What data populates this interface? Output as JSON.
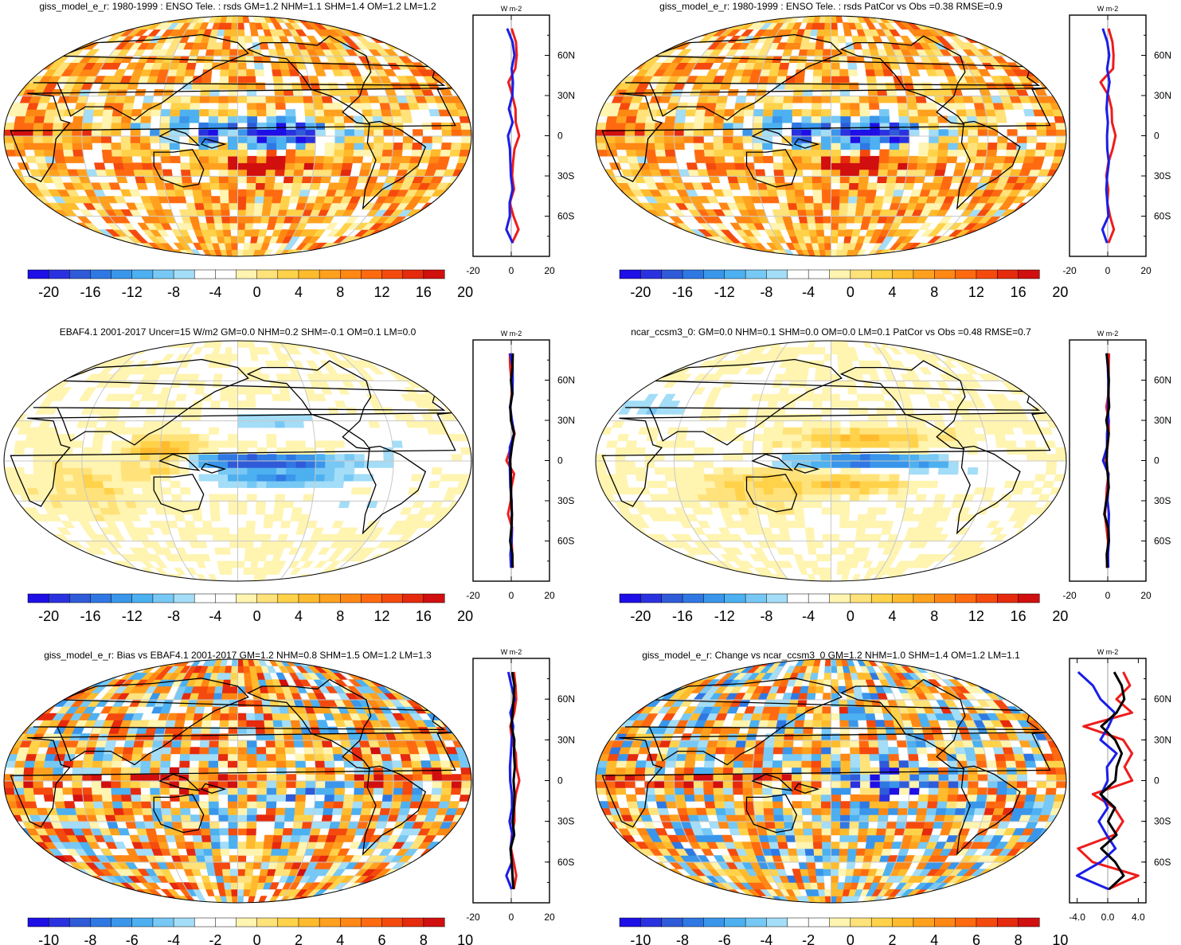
{
  "colors": {
    "palette": [
      "#1e0fe6",
      "#2a32e0",
      "#2f5ad8",
      "#2f78e4",
      "#3a96ea",
      "#4db0f0",
      "#77c8f4",
      "#a3ddf7",
      "#ffffff",
      "#ffffff",
      "#fff4b0",
      "#ffe27a",
      "#ffd24a",
      "#ffbb2d",
      "#ffa11e",
      "#ff8714",
      "#ff6a10",
      "#f54a0e",
      "#e52a0e",
      "#d10f0f"
    ],
    "model_line": "#ee1c1c",
    "obs_line": "#1a1ee6",
    "diff_line": "#000000",
    "grid": "#c8c8c8",
    "land_outline": "#000000"
  },
  "chart_data": [
    {
      "type": "heatmap",
      "title": "giss_model_e_r: 1980-1999 : ENSO Tele. : rsds GM=1.2 NHM=1.1 SHM=1.4 OM=1.2 LM=1.2",
      "field": "model",
      "colorbar": {
        "tick_labels": [
          "-20",
          "-16",
          "-12",
          "-8",
          "-4",
          "0",
          "4",
          "8",
          "12",
          "16",
          "20"
        ],
        "range": [
          -22,
          22
        ]
      },
      "zonal_profile": {
        "unit": "W m-2",
        "xticks": [
          "-20",
          "0",
          "20"
        ],
        "xlim": [
          -20,
          20
        ],
        "yticks": [
          "60N",
          "30N",
          "0",
          "30S",
          "60S"
        ],
        "lat": [
          80,
          70,
          60,
          50,
          40,
          30,
          20,
          10,
          0,
          -10,
          -20,
          -30,
          -40,
          -50,
          -60,
          -70,
          -80
        ],
        "series": [
          {
            "name": "model",
            "values": [
              1,
              2,
              3,
              2,
              -2,
              1,
              2,
              3,
              4,
              2,
              1,
              0,
              1,
              0,
              1,
              3,
              1
            ]
          },
          {
            "name": "obs",
            "values": [
              -2,
              0,
              1,
              0,
              1,
              0,
              -1,
              0,
              -1,
              0,
              0,
              -1,
              0,
              -1,
              0,
              -2,
              0
            ]
          }
        ]
      }
    },
    {
      "type": "heatmap",
      "title": "giss_model_e_r: 1980-1999 : ENSO Tele. : rsds PatCor vs Obs =0.38 RMSE=0.9",
      "field": "model",
      "colorbar": {
        "tick_labels": [
          "-20",
          "-16",
          "-12",
          "-8",
          "-4",
          "0",
          "4",
          "8",
          "12",
          "16",
          "20"
        ],
        "range": [
          -22,
          22
        ]
      },
      "zonal_profile": {
        "unit": "W m-2",
        "xticks": [
          "-20",
          "0",
          "20"
        ],
        "xlim": [
          -20,
          20
        ],
        "yticks": [
          "60N",
          "30N",
          "0",
          "30S",
          "60S"
        ],
        "lat": [
          80,
          70,
          60,
          50,
          40,
          30,
          20,
          10,
          0,
          -10,
          -20,
          -30,
          -40,
          -50,
          -60,
          -70,
          -80
        ],
        "series": [
          {
            "name": "model",
            "values": [
              1,
              2,
              3,
              2,
              -3,
              1,
              2,
              3,
              4,
              2,
              1,
              0,
              1,
              0,
              2,
              4,
              1
            ]
          },
          {
            "name": "obs",
            "values": [
              -2,
              -1,
              0,
              0,
              1,
              0,
              -1,
              0,
              -1,
              0,
              0,
              -1,
              0,
              -1,
              0,
              -3,
              0
            ]
          }
        ]
      }
    },
    {
      "type": "heatmap",
      "title": "EBAF4.1 2001-2017 Uncer=15 W/m2 GM=0.0 NHM=0.2 SHM=-0.1 OM=0.1 LM=0.0",
      "field": "obs",
      "colorbar": {
        "tick_labels": [
          "-20",
          "-16",
          "-12",
          "-8",
          "-4",
          "0",
          "4",
          "8",
          "12",
          "16",
          "20"
        ],
        "range": [
          -22,
          22
        ]
      },
      "zonal_profile": {
        "unit": "W m-2",
        "xticks": [
          "-20",
          "0",
          "20"
        ],
        "xlim": [
          -20,
          20
        ],
        "yticks": [
          "60N",
          "30N",
          "0",
          "30S",
          "60S"
        ],
        "lat": [
          80,
          70,
          60,
          50,
          40,
          30,
          20,
          10,
          0,
          -10,
          -20,
          -30,
          -40,
          -50,
          -60,
          -70,
          -80
        ],
        "series": [
          {
            "name": "model",
            "values": [
              0,
              0,
              0,
              0,
              0,
              1,
              1,
              0,
              -2,
              1,
              0,
              0,
              -1,
              0,
              0,
              0,
              0
            ]
          },
          {
            "name": "obs",
            "values": [
              0,
              0,
              0,
              0,
              0,
              0,
              1,
              0,
              -1,
              0,
              0,
              0,
              0,
              0,
              0,
              0,
              0
            ]
          },
          {
            "name": "diff",
            "values": [
              0,
              0,
              0,
              0,
              0,
              0,
              1,
              0,
              -1,
              0,
              0,
              0,
              0,
              0,
              0,
              0,
              0
            ]
          }
        ]
      }
    },
    {
      "type": "heatmap",
      "title": "ncar_ccsm3_0: GM=0.0 NHM=0.1 SHM=0.0 OM=0.0 LM=0.1 PatCor vs Obs =0.48 RMSE=0.7",
      "field": "obs2",
      "colorbar": {
        "tick_labels": [
          "-20",
          "-16",
          "-12",
          "-8",
          "-4",
          "0",
          "4",
          "8",
          "12",
          "16",
          "20"
        ],
        "range": [
          -22,
          22
        ]
      },
      "zonal_profile": {
        "unit": "W m-2",
        "xticks": [
          "-20",
          "0",
          "20"
        ],
        "xlim": [
          -20,
          20
        ],
        "yticks": [
          "60N",
          "30N",
          "0",
          "30S",
          "60S"
        ],
        "lat": [
          80,
          70,
          60,
          50,
          40,
          30,
          20,
          10,
          0,
          -10,
          -20,
          -30,
          -40,
          -50,
          -60,
          -70,
          -80
        ],
        "series": [
          {
            "name": "model",
            "values": [
              0,
              0,
              0,
              0,
              0,
              1,
              1,
              0,
              -2,
              1,
              0,
              0,
              -2,
              0,
              0,
              0,
              0
            ]
          },
          {
            "name": "obs",
            "values": [
              0,
              0,
              0,
              0,
              0,
              0,
              0,
              0,
              -2,
              0,
              0,
              0,
              0,
              0,
              0,
              0,
              0
            ]
          },
          {
            "name": "diff",
            "values": [
              0,
              0,
              0,
              0,
              0,
              0,
              0,
              0,
              -1,
              0,
              0,
              0,
              -1,
              0,
              0,
              0,
              0
            ]
          }
        ]
      }
    },
    {
      "type": "heatmap",
      "title": "giss_model_e_r: Bias vs EBAF4.1 2001-2017 GM=1.2 NHM=0.8 SHM=1.5 OM=1.2 LM=1.3",
      "field": "bias",
      "colorbar": {
        "tick_labels": [
          "-10",
          "-8",
          "-6",
          "-4",
          "-2",
          "0",
          "2",
          "4",
          "6",
          "8",
          "10"
        ],
        "range": [
          -11,
          11
        ]
      },
      "zonal_profile": {
        "unit": "W m-2",
        "xticks": [
          "-20",
          "0",
          "20"
        ],
        "xlim": [
          -20,
          20
        ],
        "yticks": [
          "60N",
          "30N",
          "0",
          "30S",
          "60S"
        ],
        "lat": [
          80,
          70,
          60,
          50,
          40,
          30,
          20,
          10,
          0,
          -10,
          -20,
          -30,
          -40,
          -50,
          -60,
          -70,
          -80
        ],
        "series": [
          {
            "name": "model",
            "values": [
              1,
              2,
              3,
              1,
              -1,
              1,
              2,
              3,
              4,
              2,
              1,
              1,
              1,
              0,
              2,
              3,
              1
            ]
          },
          {
            "name": "obs",
            "values": [
              -2,
              0,
              1,
              0,
              1,
              0,
              -1,
              0,
              -1,
              0,
              0,
              -1,
              0,
              -1,
              0,
              -2,
              0
            ]
          },
          {
            "name": "diff",
            "values": [
              1,
              1,
              2,
              1,
              0,
              1,
              1,
              2,
              2,
              1,
              1,
              0,
              1,
              0,
              1,
              1,
              1
            ]
          }
        ]
      }
    },
    {
      "type": "heatmap",
      "title": "giss_model_e_r: Change vs ncar_ccsm3_0 GM=1.2 NHM=1.0 SHM=1.4 OM=1.2 LM=1.1",
      "field": "change",
      "colorbar": {
        "tick_labels": [
          "-10",
          "-8",
          "-6",
          "-4",
          "-2",
          "0",
          "2",
          "4",
          "6",
          "8",
          "10"
        ],
        "range": [
          -11,
          11
        ]
      },
      "zonal_profile": {
        "unit": "W m-2",
        "xticks": [
          "-4.0",
          "0.0",
          "4.0"
        ],
        "xlim": [
          -5,
          5
        ],
        "yticks": [
          "60N",
          "30N",
          "0",
          "30S",
          "60S"
        ],
        "lat": [
          80,
          70,
          60,
          50,
          40,
          30,
          20,
          10,
          0,
          -10,
          -20,
          -30,
          -40,
          -50,
          -60,
          -70,
          -80
        ],
        "series": [
          {
            "name": "model",
            "values": [
              2,
              3,
              1,
              3,
              -3,
              2,
              3,
              2,
              3,
              -2,
              1,
              2,
              1,
              -4,
              -2,
              4,
              0
            ]
          },
          {
            "name": "obs",
            "values": [
              -4,
              -2,
              -1,
              1,
              0,
              -1,
              1,
              0,
              0,
              -1,
              0,
              -1,
              0,
              1,
              -1,
              -4,
              0
            ]
          },
          {
            "name": "diff",
            "values": [
              1,
              2,
              2,
              1,
              -1,
              1,
              2,
              1,
              1,
              -1,
              1,
              0,
              1,
              -1,
              1,
              2,
              0
            ]
          }
        ]
      }
    }
  ]
}
